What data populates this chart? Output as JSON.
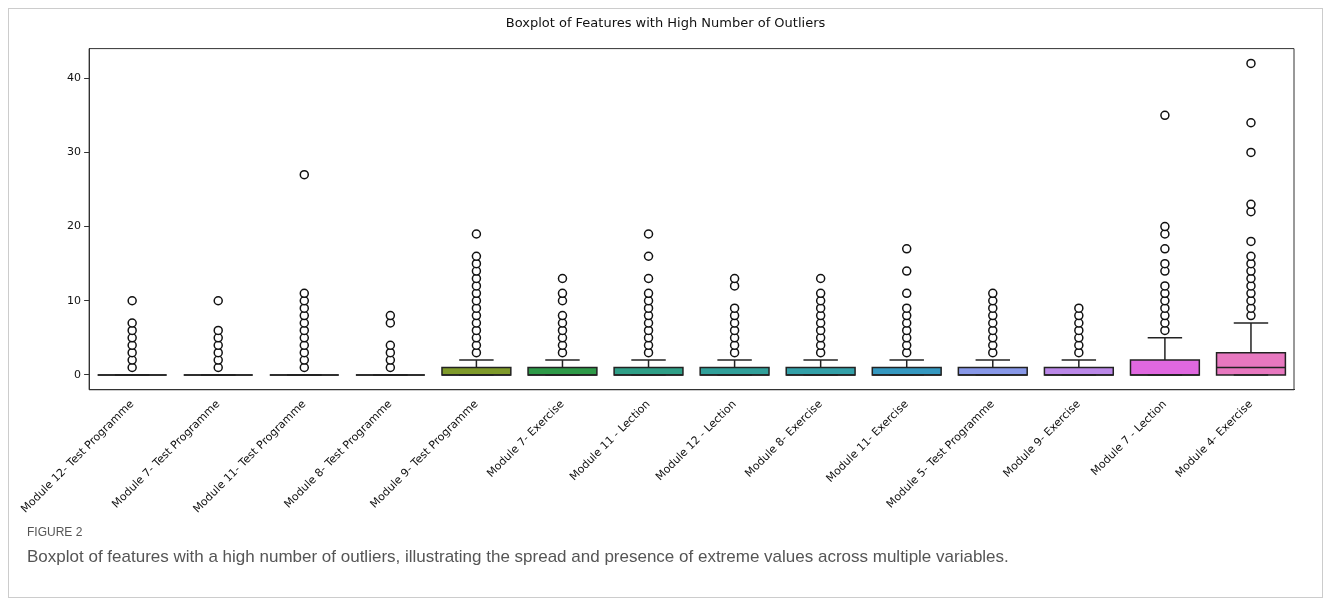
{
  "chart_data": {
    "type": "box",
    "title": "Boxplot of Features with High Number of Outliers",
    "categories": [
      "Module 12- Test Programme",
      "Module 7- Test Programme",
      "Module 11- Test Programme",
      "Module 8- Test Programme",
      "Module 9- Test Programme",
      "Module 7- Exercise",
      "Module 11 - Lection",
      "Module 12 - Lection",
      "Module 8- Exercise",
      "Module 11- Exercise",
      "Module 5- Test Programme",
      "Module 9- Exercise",
      "Module 7 - Lection",
      "Module 4- Exercise"
    ],
    "colors": [
      "#222222",
      "#222222",
      "#222222",
      "#222222",
      "#7f9a2a",
      "#2e9a48",
      "#2f9f87",
      "#31a09a",
      "#33a0a8",
      "#3598c0",
      "#8898e8",
      "#bb88e8",
      "#e068e0",
      "#e878c0"
    ],
    "boxes": [
      {
        "low": 0,
        "q1": 0,
        "median": 0,
        "q3": 0,
        "high": 0,
        "outliers": [
          1,
          2,
          3,
          4,
          5,
          6,
          7,
          10
        ]
      },
      {
        "low": 0,
        "q1": 0,
        "median": 0,
        "q3": 0,
        "high": 0,
        "outliers": [
          1,
          2,
          3,
          4,
          5,
          6,
          10
        ]
      },
      {
        "low": 0,
        "q1": 0,
        "median": 0,
        "q3": 0,
        "high": 0,
        "outliers": [
          1,
          2,
          3,
          4,
          5,
          6,
          7,
          8,
          9,
          10,
          11,
          27
        ]
      },
      {
        "low": 0,
        "q1": 0,
        "median": 0,
        "q3": 0,
        "high": 0,
        "outliers": [
          1,
          2,
          3,
          4,
          7,
          8
        ]
      },
      {
        "low": 0,
        "q1": 0,
        "median": 0,
        "q3": 1,
        "high": 2,
        "outliers": [
          3,
          4,
          5,
          6,
          7,
          8,
          9,
          10,
          11,
          12,
          13,
          14,
          15,
          16,
          19
        ]
      },
      {
        "low": 0,
        "q1": 0,
        "median": 0,
        "q3": 1,
        "high": 2,
        "outliers": [
          3,
          4,
          5,
          6,
          7,
          8,
          10,
          11,
          13
        ]
      },
      {
        "low": 0,
        "q1": 0,
        "median": 0,
        "q3": 1,
        "high": 2,
        "outliers": [
          3,
          4,
          5,
          6,
          7,
          8,
          9,
          10,
          11,
          13,
          16,
          19
        ]
      },
      {
        "low": 0,
        "q1": 0,
        "median": 0,
        "q3": 1,
        "high": 2,
        "outliers": [
          3,
          4,
          5,
          6,
          7,
          8,
          9,
          12,
          13
        ]
      },
      {
        "low": 0,
        "q1": 0,
        "median": 0,
        "q3": 1,
        "high": 2,
        "outliers": [
          3,
          4,
          5,
          6,
          7,
          8,
          9,
          10,
          11,
          13
        ]
      },
      {
        "low": 0,
        "q1": 0,
        "median": 0,
        "q3": 1,
        "high": 2,
        "outliers": [
          3,
          4,
          5,
          6,
          7,
          8,
          9,
          11,
          14,
          17
        ]
      },
      {
        "low": 0,
        "q1": 0,
        "median": 0,
        "q3": 1,
        "high": 2,
        "outliers": [
          3,
          4,
          5,
          6,
          7,
          8,
          9,
          10,
          11
        ]
      },
      {
        "low": 0,
        "q1": 0,
        "median": 0,
        "q3": 1,
        "high": 2,
        "outliers": [
          3,
          4,
          5,
          6,
          7,
          8,
          9
        ]
      },
      {
        "low": 0,
        "q1": 0,
        "median": 0,
        "q3": 2,
        "high": 5,
        "outliers": [
          6,
          7,
          8,
          9,
          10,
          11,
          12,
          14,
          15,
          17,
          19,
          20,
          35
        ]
      },
      {
        "low": 0,
        "q1": 0,
        "median": 1,
        "q3": 3,
        "high": 7,
        "outliers": [
          8,
          9,
          10,
          11,
          12,
          13,
          14,
          15,
          16,
          18,
          22,
          23,
          30,
          34,
          42
        ]
      }
    ],
    "ylim": [
      -2,
      44
    ],
    "yticks": [
      0,
      10,
      20,
      30,
      40
    ],
    "marker": "circle",
    "annotations": [
      "FIGURE 2",
      "Boxplot of features with a high number of outliers, illustrating the spread and presence of extreme values across multiple variables."
    ]
  }
}
